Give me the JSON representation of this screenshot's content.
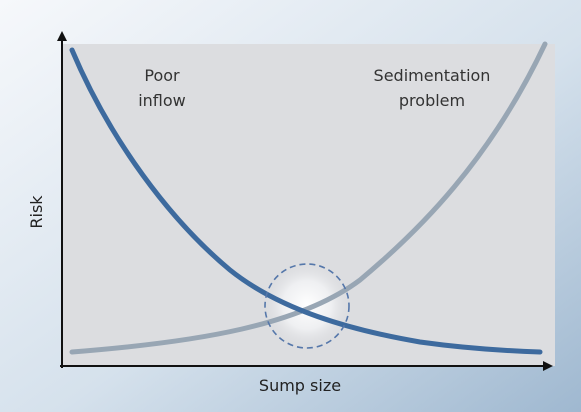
{
  "diagram": {
    "curve_labels": {
      "poor_inflow": [
        "Poor",
        "inflow"
      ],
      "sedimentation": [
        "Sedimentation",
        "problem"
      ]
    },
    "axes": {
      "x_label": "Sump size",
      "y_label": "Risk"
    },
    "colors": {
      "background_gradient_start": "#f5f7fa",
      "background_gradient_end": "#9fb8d0",
      "plot_area": "#dcdde0",
      "poor_inflow_curve": "#3d6a9e",
      "sedimentation_curve": "#98a6b4",
      "optimum_circle": "#5577aa",
      "axis": "#111111"
    }
  }
}
